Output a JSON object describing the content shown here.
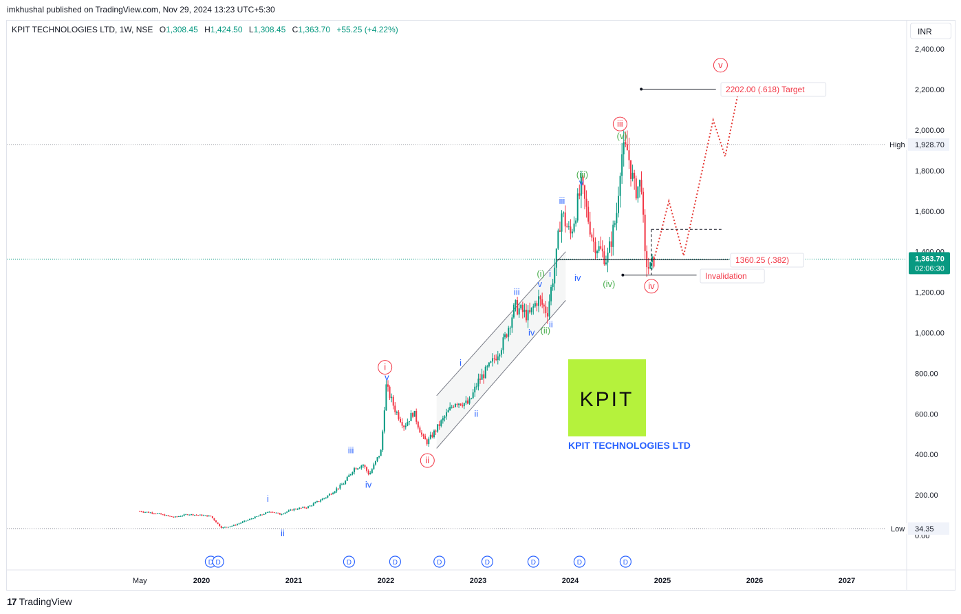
{
  "header": {
    "credit": "imkhushal published on TradingView.com, Nov 29, 2024 13:23 UTC+5:30"
  },
  "legend": {
    "symbol": "KPIT TECHNOLOGIES LTD, 1W, NSE",
    "o_label": "O",
    "o_value": "1,308.45",
    "h_label": "H",
    "h_value": "1,424.50",
    "l_label": "L",
    "l_value": "1,308.45",
    "c_label": "C",
    "c_value": "1,363.70",
    "change": "+55.25 (+4.22%)"
  },
  "toolbar": {
    "currency": "INR"
  },
  "brand": {
    "name": "TradingView",
    "logo_text": "17"
  },
  "logo_box": {
    "text": "KPIT",
    "caption": "KPIT TECHNOLOGIES LTD",
    "bg": "#b5f23c",
    "caption_color": "#2962ff"
  },
  "price_scale": {
    "high_label": "High",
    "high_value": "1,928.70",
    "low_label": "Low",
    "low_value": "34.35",
    "current_value": "1,363.70",
    "countdown": "02:06:30",
    "current_color": "#089981"
  },
  "annotations": {
    "target": "2202.00 (.618) Target",
    "fib": "1360.25 (.382)",
    "invalidation": "Invalidation"
  },
  "event_marker": {
    "label": "D"
  },
  "colors": {
    "up": "#089981",
    "down": "#f23645",
    "red_wave": "#f23645",
    "green_wave": "#4caf50",
    "blue_wave": "#2962ff",
    "dotted": "#e53935"
  },
  "chart_data": {
    "type": "candlestick",
    "symbol": "KPIT TECHNOLOGIES LTD",
    "interval": "1W",
    "exchange": "NSE",
    "ylim": [
      0,
      2400
    ],
    "y_ticks": [
      0,
      200,
      400,
      600,
      800,
      1000,
      1200,
      1400,
      1600,
      1800,
      2000,
      2200,
      2400
    ],
    "y_tick_labels": [
      "0.00",
      "200.00",
      "400.00",
      "600.00",
      "800.00",
      "1,000.00",
      "1,200.00",
      "1,400.00",
      "1,600.00",
      "1,800.00",
      "2,000.00",
      "2,200.00",
      "2,400.00"
    ],
    "x_labels": [
      {
        "t": 2019.33,
        "label": "May",
        "year": false
      },
      {
        "t": 2020.0,
        "label": "2020",
        "year": true
      },
      {
        "t": 2021.0,
        "label": "2021",
        "year": true
      },
      {
        "t": 2022.0,
        "label": "2022",
        "year": true
      },
      {
        "t": 2023.0,
        "label": "2023",
        "year": true
      },
      {
        "t": 2024.0,
        "label": "2024",
        "year": true
      },
      {
        "t": 2025.0,
        "label": "2025",
        "year": true
      },
      {
        "t": 2026.0,
        "label": "2026",
        "year": true
      },
      {
        "t": 2027.0,
        "label": "2027",
        "year": true
      }
    ],
    "price_path": [
      [
        2019.33,
        120
      ],
      [
        2019.5,
        110
      ],
      [
        2019.7,
        90
      ],
      [
        2019.85,
        105
      ],
      [
        2020.0,
        100
      ],
      [
        2020.1,
        95
      ],
      [
        2020.18,
        55
      ],
      [
        2020.22,
        38
      ],
      [
        2020.35,
        50
      ],
      [
        2020.55,
        85
      ],
      [
        2020.75,
        120
      ],
      [
        2020.85,
        105
      ],
      [
        2021.0,
        130
      ],
      [
        2021.15,
        140
      ],
      [
        2021.35,
        190
      ],
      [
        2021.55,
        260
      ],
      [
        2021.65,
        330
      ],
      [
        2021.75,
        350
      ],
      [
        2021.82,
        300
      ],
      [
        2021.95,
        420
      ],
      [
        2022.0,
        740
      ],
      [
        2022.1,
        620
      ],
      [
        2022.2,
        540
      ],
      [
        2022.3,
        610
      ],
      [
        2022.4,
        480
      ],
      [
        2022.45,
        460
      ],
      [
        2022.6,
        560
      ],
      [
        2022.75,
        660
      ],
      [
        2022.9,
        650
      ],
      [
        2023.0,
        760
      ],
      [
        2023.15,
        850
      ],
      [
        2023.28,
        960
      ],
      [
        2023.4,
        1130
      ],
      [
        2023.55,
        1080
      ],
      [
        2023.65,
        1170
      ],
      [
        2023.75,
        1100
      ],
      [
        2023.85,
        1380
      ],
      [
        2023.9,
        1600
      ],
      [
        2024.0,
        1480
      ],
      [
        2024.12,
        1720
      ],
      [
        2024.25,
        1450
      ],
      [
        2024.4,
        1360
      ],
      [
        2024.5,
        1580
      ],
      [
        2024.55,
        1880
      ],
      [
        2024.62,
        1900
      ],
      [
        2024.7,
        1700
      ],
      [
        2024.78,
        1750
      ],
      [
        2024.8,
        1380
      ],
      [
        2024.86,
        1310
      ],
      [
        2024.91,
        1363.7
      ]
    ],
    "price_high": 1928.7,
    "price_low": 34.35,
    "last_price": 1363.7,
    "levels": {
      "target": 2202.0,
      "fib_382": 1360.25,
      "invalidation": 1285,
      "dashed_resistance": 1510
    },
    "projection_path": [
      [
        2024.91,
        1363.7
      ],
      [
        2025.07,
        1650
      ],
      [
        2025.23,
        1380
      ],
      [
        2025.55,
        2050
      ],
      [
        2025.68,
        1870
      ],
      [
        2025.82,
        2180
      ]
    ],
    "wave_labels": [
      {
        "t": 2021.99,
        "p": 830,
        "text": "i",
        "color": "red",
        "circle": true
      },
      {
        "t": 2022.45,
        "p": 370,
        "text": "ii",
        "color": "red",
        "circle": true
      },
      {
        "t": 2024.54,
        "p": 2030,
        "text": "iii",
        "color": "red",
        "circle": true
      },
      {
        "t": 2024.88,
        "p": 1230,
        "text": "iv",
        "color": "red",
        "circle": true
      },
      {
        "t": 2025.63,
        "p": 2320,
        "text": "v",
        "color": "red",
        "circle": true
      },
      {
        "t": 2023.68,
        "p": 1290,
        "text": "(i)",
        "color": "green",
        "circle": false
      },
      {
        "t": 2023.73,
        "p": 1010,
        "text": "(ii)",
        "color": "green",
        "circle": false
      },
      {
        "t": 2024.13,
        "p": 1780,
        "text": "(iii)",
        "color": "green",
        "circle": false
      },
      {
        "t": 2024.42,
        "p": 1240,
        "text": "(iv)",
        "color": "green",
        "circle": false
      },
      {
        "t": 2024.56,
        "p": 1970,
        "text": "(v)",
        "color": "green",
        "circle": false
      },
      {
        "t": 2020.72,
        "p": 180,
        "text": "i",
        "color": "blue",
        "circle": false
      },
      {
        "t": 2020.88,
        "p": 10,
        "text": "ii",
        "color": "blue",
        "circle": false
      },
      {
        "t": 2021.62,
        "p": 420,
        "text": "iii",
        "color": "blue",
        "circle": false
      },
      {
        "t": 2021.81,
        "p": 250,
        "text": "iv",
        "color": "blue",
        "circle": false
      },
      {
        "t": 2022.01,
        "p": 780,
        "text": "v",
        "color": "blue",
        "circle": false
      },
      {
        "t": 2022.81,
        "p": 850,
        "text": "i",
        "color": "blue",
        "circle": false
      },
      {
        "t": 2022.98,
        "p": 600,
        "text": "ii",
        "color": "blue",
        "circle": false
      },
      {
        "t": 2023.42,
        "p": 1200,
        "text": "iii",
        "color": "blue",
        "circle": false
      },
      {
        "t": 2023.58,
        "p": 1000,
        "text": "iv",
        "color": "blue",
        "circle": false
      },
      {
        "t": 2023.67,
        "p": 1240,
        "text": "v",
        "color": "blue",
        "circle": false
      },
      {
        "t": 2023.78,
        "p": 1290,
        "text": "i",
        "color": "blue",
        "circle": false
      },
      {
        "t": 2023.79,
        "p": 1040,
        "text": "ii",
        "color": "blue",
        "circle": false
      },
      {
        "t": 2023.91,
        "p": 1650,
        "text": "iii",
        "color": "blue",
        "circle": false
      },
      {
        "t": 2024.08,
        "p": 1270,
        "text": "iv",
        "color": "blue",
        "circle": false
      },
      {
        "t": 2024.12,
        "p": 1740,
        "text": "v",
        "color": "blue",
        "circle": false
      }
    ],
    "events": [
      2020.1,
      2020.18,
      2021.6,
      2022.1,
      2022.58,
      2023.1,
      2023.6,
      2024.1,
      2024.6
    ],
    "grid": false,
    "legend": "top-left"
  }
}
